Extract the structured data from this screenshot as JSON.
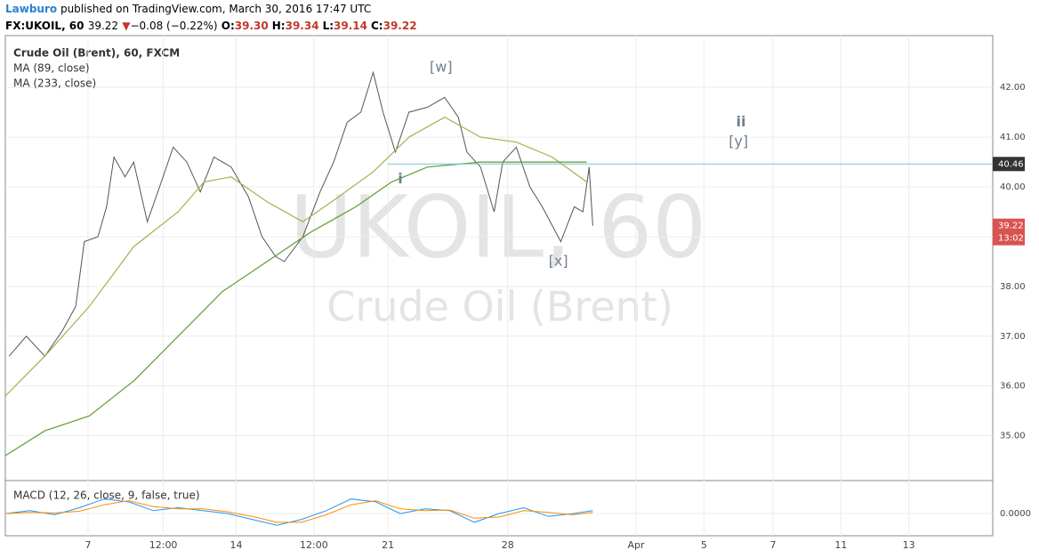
{
  "header": {
    "author": "Lawburo",
    "published": "published on TradingView.com, March 30, 2016 17:47 UTC",
    "symbol": "FX:UKOIL, 60",
    "last": "39.22",
    "arrow": "▼",
    "change": "−0.08 (−0.22%)",
    "ohlc": [
      {
        "label": "O:",
        "value": "39.30"
      },
      {
        "label": "H:",
        "value": "39.34"
      },
      {
        "label": "L:",
        "value": "39.14"
      },
      {
        "label": "C:",
        "value": "39.22"
      }
    ]
  },
  "chart_data": {
    "type": "line",
    "title": "Crude Oil (Brent), 60, FXCM",
    "watermark": "UKOIL, 60",
    "watermark_sub": "Crude Oil (Brent)",
    "xlim": [
      0,
      800
    ],
    "ylim": [
      34.1,
      43.04
    ],
    "xticks": [
      {
        "value": 67,
        "label": "7"
      },
      {
        "value": 128,
        "label": "12:00"
      },
      {
        "value": 187,
        "label": "14"
      },
      {
        "value": 250,
        "label": "12:00"
      },
      {
        "value": 310,
        "label": "21"
      },
      {
        "value": 407,
        "label": "28"
      },
      {
        "value": 511,
        "label": "Apr"
      },
      {
        "value": 566,
        "label": "5"
      },
      {
        "value": 622,
        "label": "7"
      },
      {
        "value": 677,
        "label": "11"
      },
      {
        "value": 732,
        "label": "13"
      }
    ],
    "yticks": [
      {
        "value": 35,
        "label": "35.00"
      },
      {
        "value": 36,
        "label": "36.00"
      },
      {
        "value": 37,
        "label": "37.00"
      },
      {
        "value": 38,
        "label": "38.00"
      },
      {
        "value": 39,
        "label": "39.00"
      },
      {
        "value": 40,
        "label": "40.00"
      },
      {
        "value": 41,
        "label": "41.00"
      },
      {
        "value": 42,
        "label": "42.00"
      }
    ],
    "grid": true,
    "series": [
      {
        "name": "Price",
        "color": "#555555",
        "x": [
          3,
          17,
          32,
          46,
          57,
          64,
          75,
          82,
          88,
          97,
          104,
          115,
          125,
          136,
          147,
          158,
          169,
          183,
          197,
          208,
          219,
          226,
          241,
          255,
          266,
          277,
          288,
          298,
          306,
          316,
          327,
          342,
          356,
          367,
          374,
          385,
          396,
          403,
          414,
          425,
          435,
          450,
          461,
          468,
          473,
          476
        ],
        "values": [
          36.6,
          37.0,
          36.6,
          37.1,
          37.6,
          38.9,
          39.0,
          39.6,
          40.6,
          40.2,
          40.5,
          39.3,
          40.0,
          40.8,
          40.5,
          39.9,
          40.6,
          40.4,
          39.8,
          39.0,
          38.6,
          38.5,
          39.0,
          39.9,
          40.5,
          41.3,
          41.5,
          42.3,
          41.5,
          40.7,
          41.5,
          41.6,
          41.8,
          41.4,
          40.7,
          40.4,
          39.5,
          40.5,
          40.8,
          40.0,
          39.6,
          38.9,
          39.6,
          39.5,
          40.4,
          39.22
        ]
      },
      {
        "name": "MA (89, close)",
        "color": "#a5b04a",
        "x": [
          0,
          32,
          68,
          104,
          140,
          161,
          183,
          212,
          241,
          270,
          298,
          327,
          356,
          385,
          414,
          443,
          471
        ],
        "values": [
          35.8,
          36.6,
          37.6,
          38.8,
          39.5,
          40.1,
          40.2,
          39.7,
          39.3,
          39.8,
          40.3,
          41.0,
          41.4,
          41.0,
          40.9,
          40.6,
          40.1
        ]
      },
      {
        "name": "MA (233, close)",
        "color": "#5f9c32",
        "x": [
          0,
          32,
          68,
          104,
          140,
          176,
          212,
          248,
          284,
          313,
          342,
          385,
          429,
          471
        ],
        "values": [
          34.6,
          35.1,
          35.4,
          36.1,
          37.0,
          37.9,
          38.5,
          39.1,
          39.6,
          40.1,
          40.4,
          40.5,
          40.5,
          40.5
        ]
      }
    ],
    "level": {
      "value": 40.46,
      "label": "40.46",
      "start": 310,
      "color": "#76c7d4"
    },
    "last_tag": {
      "value": 39.22,
      "label": "39.22",
      "timer": "13:02",
      "color": "#d9534f"
    },
    "annotations": [
      {
        "text": "[w]",
        "x": 353,
        "y": 42.4
      },
      {
        "text": "ii",
        "x": 596,
        "y": 41.3
      },
      {
        "text": "[y]",
        "x": 594,
        "y": 40.9
      },
      {
        "text": "i",
        "x": 320,
        "y": 40.15
      },
      {
        "text": "[x]",
        "x": 448,
        "y": 38.5
      }
    ],
    "macd": {
      "title": "MACD (12, 26, close, 9, false, true)",
      "ylim": [
        -0.35,
        0.55
      ],
      "yticks": [
        {
          "value": 0,
          "label": "0.0000"
        }
      ],
      "x": [
        0,
        20,
        40,
        60,
        80,
        100,
        120,
        140,
        160,
        180,
        200,
        220,
        240,
        260,
        280,
        300,
        320,
        340,
        360,
        380,
        400,
        420,
        440,
        460,
        476
      ],
      "series": [
        {
          "color": "#2196f3",
          "values": [
            0,
            0.05,
            -0.02,
            0.1,
            0.25,
            0.2,
            0.05,
            0.1,
            0.05,
            0,
            -0.1,
            -0.2,
            -0.1,
            0.05,
            0.25,
            0.2,
            0,
            0.08,
            0.05,
            -0.15,
            0,
            0.1,
            -0.05,
            0,
            0.05
          ]
        },
        {
          "color": "#ff8c00",
          "values": [
            0,
            0.02,
            0.01,
            0.04,
            0.15,
            0.22,
            0.12,
            0.08,
            0.08,
            0.03,
            -0.05,
            -0.15,
            -0.15,
            -0.02,
            0.15,
            0.22,
            0.08,
            0.05,
            0.06,
            -0.08,
            -0.06,
            0.05,
            0.02,
            -0.02,
            0.02
          ]
        }
      ]
    }
  }
}
